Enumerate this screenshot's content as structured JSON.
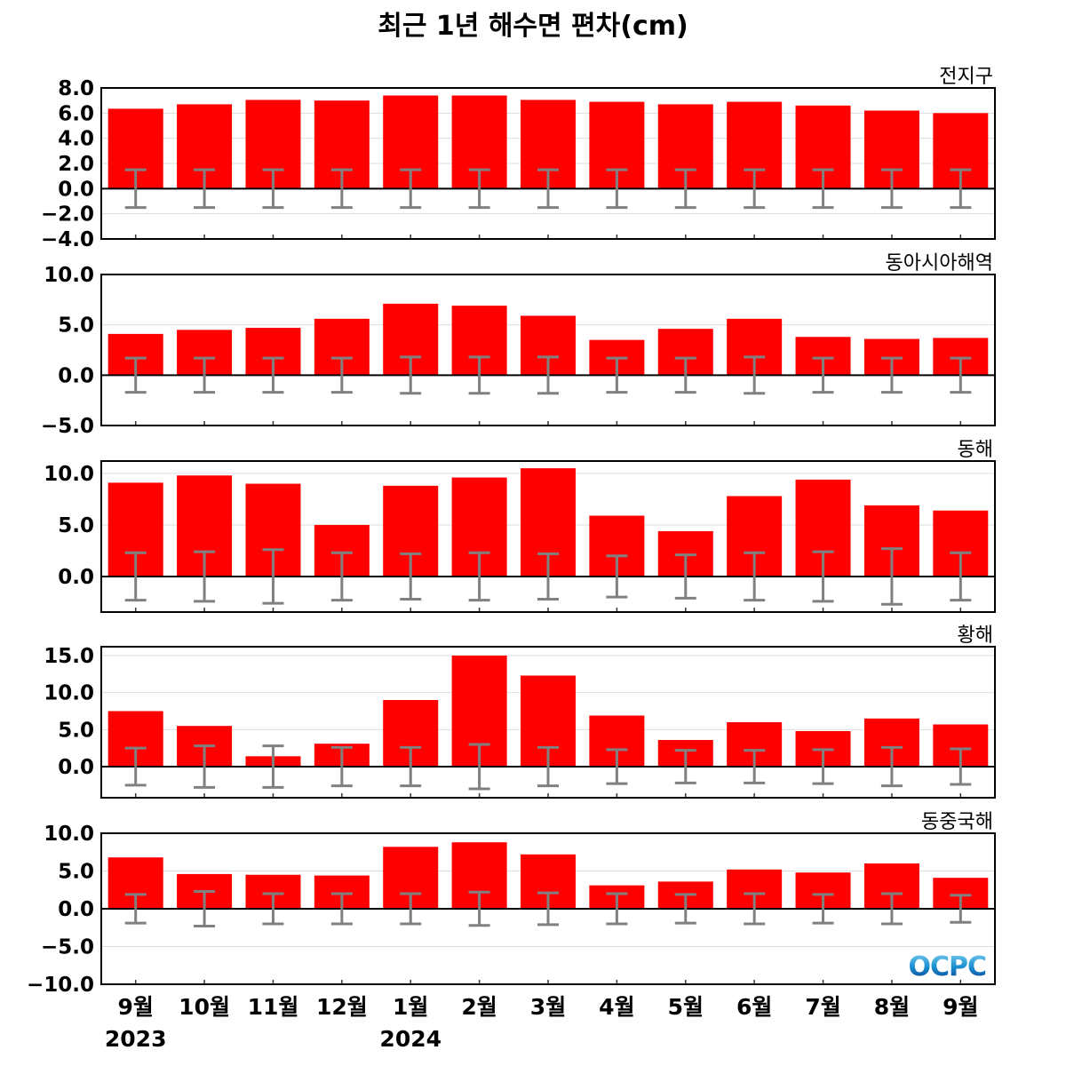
{
  "chart_data": {
    "type": "bar",
    "title": "최근 1년 해수면 편차(cm)",
    "categories": [
      "9월",
      "10월",
      "11월",
      "12월",
      "1월",
      "2월",
      "3월",
      "4월",
      "5월",
      "6월",
      "7월",
      "8월",
      "9월"
    ],
    "year_labels": [
      {
        "index": 0,
        "label": "2023"
      },
      {
        "index": 4,
        "label": "2024"
      }
    ],
    "bar_color": "#ff0000",
    "errorbar_color": "#808080",
    "logo_text": "OCPC",
    "panels": [
      {
        "name": "전지구",
        "ylim": [
          -4,
          8
        ],
        "ticks": [
          -4,
          -2,
          0,
          2,
          4,
          6,
          8
        ],
        "tick_format": "8.0",
        "values": [
          6.35,
          6.7,
          7.05,
          7.0,
          7.4,
          7.4,
          7.05,
          6.9,
          6.7,
          6.9,
          6.6,
          6.2,
          6.0
        ],
        "error": [
          1.5,
          1.5,
          1.5,
          1.5,
          1.5,
          1.5,
          1.5,
          1.5,
          1.5,
          1.5,
          1.5,
          1.5,
          1.5
        ]
      },
      {
        "name": "동아시아해역",
        "ylim": [
          -5,
          10
        ],
        "ticks": [
          -5,
          0,
          5,
          10
        ],
        "values": [
          4.1,
          4.5,
          4.7,
          5.6,
          7.1,
          6.9,
          5.9,
          3.5,
          4.6,
          5.6,
          3.8,
          3.6,
          3.7
        ],
        "error": [
          1.7,
          1.7,
          1.7,
          1.7,
          1.8,
          1.8,
          1.8,
          1.7,
          1.7,
          1.8,
          1.7,
          1.7,
          1.7
        ]
      },
      {
        "name": "동해",
        "ylim": [
          -3.45,
          11.2
        ],
        "ticks": [
          0,
          5,
          10
        ],
        "values": [
          9.1,
          9.8,
          9.0,
          5.0,
          8.8,
          9.6,
          10.5,
          5.9,
          4.4,
          7.8,
          9.4,
          6.9,
          6.4
        ],
        "error": [
          2.3,
          2.4,
          2.6,
          2.3,
          2.2,
          2.3,
          2.2,
          2.0,
          2.1,
          2.3,
          2.4,
          2.7,
          2.3
        ]
      },
      {
        "name": "황해",
        "ylim": [
          -4.2,
          16.2
        ],
        "ticks": [
          0,
          5,
          10,
          15
        ],
        "values": [
          7.5,
          5.5,
          1.4,
          3.1,
          9.0,
          15.0,
          12.3,
          6.9,
          3.6,
          6.0,
          4.8,
          6.5,
          5.7
        ],
        "error": [
          2.5,
          2.8,
          2.8,
          2.6,
          2.6,
          3.0,
          2.6,
          2.3,
          2.2,
          2.2,
          2.3,
          2.6,
          2.4
        ]
      },
      {
        "name": "동중국해",
        "ylim": [
          -10,
          10
        ],
        "ticks": [
          -10,
          -5,
          0,
          5,
          10
        ],
        "values": [
          6.8,
          4.6,
          4.5,
          4.4,
          8.2,
          8.8,
          7.2,
          3.1,
          3.6,
          5.2,
          4.8,
          6.0,
          4.1
        ],
        "error": [
          1.9,
          2.3,
          2.0,
          2.0,
          2.0,
          2.2,
          2.1,
          2.0,
          1.9,
          2.0,
          1.9,
          2.0,
          1.8
        ]
      }
    ]
  }
}
